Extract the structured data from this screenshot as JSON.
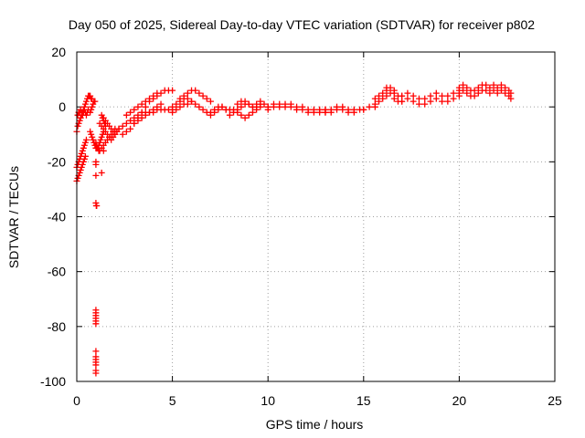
{
  "chart_data": {
    "type": "scatter",
    "title": "Day 050 of 2025, Sidereal Day-to-day VTEC variation (SDTVAR) for receiver p802",
    "xlabel": "GPS time / hours",
    "ylabel": "SDTVAR / TECUs",
    "xlim": [
      0,
      25
    ],
    "ylim": [
      -100,
      20
    ],
    "xticks": [
      0,
      5,
      10,
      15,
      20,
      25
    ],
    "yticks": [
      -100,
      -80,
      -60,
      -40,
      -20,
      0,
      20
    ],
    "xtick_labels": [
      "0",
      "5",
      "10",
      "15",
      "20",
      "25"
    ],
    "ytick_labels": [
      "-100",
      "-80",
      "-60",
      "-40",
      "-20",
      "0",
      "20"
    ],
    "grid": true,
    "marker": "+",
    "color": "#ff0000",
    "series": [
      {
        "name": "SDTVAR",
        "x": [
          0.0,
          0.05,
          0.1,
          0.15,
          0.2,
          0.25,
          0.3,
          0.35,
          0.4,
          0.45,
          0.5,
          0.55,
          0.6,
          0.65,
          0.7,
          0.75,
          0.8,
          0.05,
          0.1,
          0.15,
          0.2,
          0.25,
          0.3,
          0.35,
          0.4,
          0.45,
          0.5,
          0.55,
          0.6,
          0.0,
          0.05,
          0.1,
          0.15,
          0.2,
          0.25,
          0.3,
          0.35,
          0.4,
          0.45,
          0.5,
          0.0,
          0.05,
          0.1,
          0.15,
          0.2,
          0.25,
          0.3,
          0.35,
          0.4,
          0.45,
          0.7,
          0.75,
          0.8,
          0.85,
          0.9,
          0.95,
          0.7,
          0.75,
          0.8,
          0.85,
          0.9,
          0.95,
          1.0,
          1.05,
          1.1,
          1.15,
          1.2,
          1.25,
          1.3,
          1.35,
          1.4,
          1.3,
          1.35,
          1.4,
          1.45,
          1.5,
          1.0,
          1.05,
          1.1,
          1.15,
          1.2,
          1.3,
          1.4,
          1.5,
          1.6,
          1.7,
          1.8,
          1.9,
          2.0,
          1.2,
          1.3,
          1.4,
          1.5,
          1.6,
          1.7,
          1.8,
          1.9,
          2.0,
          2.1,
          1.4,
          1.5,
          1.6,
          1.7,
          1.8,
          1.9,
          2.0,
          2.1,
          2.2,
          1.0,
          1.0,
          1.0,
          1.02,
          1.04,
          1.0,
          1.0,
          1.0,
          1.0,
          1.0,
          1.0,
          1.0,
          1.0,
          1.0,
          1.0,
          1.0,
          1.0,
          1.0,
          1.0,
          2.0,
          2.2,
          2.4,
          2.6,
          2.8,
          3.0,
          3.2,
          3.4,
          3.6,
          3.8,
          4.0,
          4.2,
          4.4,
          4.6,
          4.8,
          5.0,
          2.4,
          2.6,
          2.8,
          3.0,
          3.2,
          3.4,
          3.6,
          3.8,
          4.0,
          4.2,
          4.4,
          4.6,
          4.8,
          5.0,
          2.6,
          2.8,
          3.0,
          3.2,
          3.4,
          3.6,
          3.8,
          4.0,
          4.2,
          3.0,
          3.2,
          3.4,
          3.6,
          3.8,
          4.0,
          4.2,
          4.4,
          5.0,
          5.2,
          5.4,
          5.6,
          5.8,
          6.0,
          5.0,
          5.2,
          5.4,
          5.6,
          5.8,
          6.0,
          6.2,
          6.4,
          6.6,
          6.8,
          7.0,
          7.2,
          7.4,
          7.6,
          7.8,
          8.0,
          5.4,
          5.6,
          5.8,
          6.0,
          6.2,
          6.4,
          6.6,
          6.8,
          7.0,
          7.0,
          7.2,
          7.4,
          7.6,
          7.8,
          8.0,
          8.2,
          8.4,
          8.6,
          8.8,
          9.0,
          9.2,
          9.4,
          9.6,
          9.8,
          10.0,
          8.2,
          8.4,
          8.6,
          8.8,
          9.0,
          9.2,
          9.4,
          9.6,
          8.4,
          8.6,
          8.8,
          9.0,
          9.2,
          9.4,
          9.6,
          10.0,
          10.3,
          10.6,
          10.9,
          11.2,
          11.5,
          11.8,
          12.1,
          12.4,
          12.7,
          13.0,
          10.0,
          10.3,
          10.6,
          10.9,
          11.2,
          11.5,
          11.8,
          12.1,
          12.4,
          12.7,
          13.0,
          13.0,
          13.3,
          13.6,
          13.9,
          14.2,
          14.5,
          14.8,
          15.0,
          13.0,
          13.3,
          13.6,
          13.9,
          14.2,
          14.5,
          15.0,
          15.3,
          15.6,
          15.6,
          15.8,
          16.0,
          16.2,
          16.4,
          16.6,
          16.8,
          17.0,
          15.6,
          15.8,
          16.0,
          16.2,
          16.4,
          16.6,
          16.8,
          17.0,
          17.0,
          17.3,
          17.6,
          17.9,
          18.2,
          18.5,
          18.8,
          19.1,
          19.4,
          19.7,
          20.0,
          17.0,
          17.3,
          17.6,
          17.9,
          18.2,
          18.5,
          18.8,
          19.1,
          19.4,
          19.7,
          20.0,
          20.0,
          20.2,
          20.4,
          20.6,
          20.8,
          21.0,
          21.2,
          21.4,
          21.6,
          21.8,
          22.0,
          22.2,
          22.4,
          22.6,
          22.7,
          20.0,
          20.2,
          20.4,
          20.6,
          20.8,
          21.0,
          21.2,
          21.4,
          21.6,
          21.8,
          22.0,
          22.2,
          22.4,
          22.6,
          22.7,
          16.2,
          16.6,
          1.3,
          1.4
        ],
        "y": [
          -9,
          -7,
          -6,
          -5,
          -4,
          -3,
          -2,
          -1,
          0,
          1,
          2,
          3,
          4,
          4,
          4,
          3,
          3,
          -3,
          -2,
          -2,
          -1,
          -2,
          -3,
          -2,
          -1,
          -2,
          -3,
          -2,
          -1,
          -22,
          -21,
          -20,
          -19,
          -18,
          -17,
          -16,
          -15,
          -14,
          -13,
          -12,
          -27,
          -26,
          -25,
          -24,
          -23,
          -22,
          -21,
          -20,
          -19,
          -18,
          -2,
          -1,
          0,
          1,
          2,
          2,
          -9,
          -10,
          -11,
          -12,
          -13,
          -14,
          -15,
          -15,
          -15,
          -14,
          -13,
          -12,
          -11,
          -10,
          -9,
          -3,
          -4,
          -5,
          -6,
          -7,
          -13,
          -14,
          -15,
          -16,
          -16,
          -15,
          -14,
          -13,
          -12,
          -11,
          -10,
          -9,
          -8,
          -6,
          -7,
          -8,
          -9,
          -10,
          -11,
          -12,
          -11,
          -10,
          -9,
          -4,
          -5,
          -6,
          -7,
          -8,
          -9,
          -10,
          -9,
          -8,
          -20,
          -21,
          -35,
          -36,
          -36,
          -74,
          -75,
          -76,
          -77,
          -78,
          -79,
          -89,
          -91,
          -92,
          -93,
          -94,
          -96,
          -97,
          -25,
          -9,
          -8,
          -7,
          -6,
          -5,
          -4,
          -3,
          -2,
          -2,
          -2,
          -2,
          -1,
          -1,
          -1,
          -1,
          -1,
          -10,
          -9,
          -8,
          -6,
          -4,
          -2,
          0,
          2,
          3,
          4,
          5,
          6,
          6,
          6,
          -3,
          -2,
          -1,
          0,
          1,
          2,
          3,
          4,
          5,
          -6,
          -5,
          -4,
          -3,
          -2,
          -1,
          0,
          1,
          -2,
          -1,
          0,
          1,
          1,
          2,
          0,
          1,
          2,
          3,
          3,
          2,
          1,
          0,
          -1,
          -2,
          -2,
          -1,
          0,
          0,
          -1,
          -1,
          3,
          4,
          5,
          6,
          6,
          5,
          4,
          3,
          2,
          -3,
          -2,
          -1,
          0,
          -1,
          -3,
          -2,
          -1,
          0,
          1,
          1,
          0,
          0,
          1,
          1,
          0,
          -1,
          -2,
          -3,
          -4,
          -3,
          -2,
          -1,
          0,
          1,
          2,
          2,
          1,
          0,
          1,
          2,
          0,
          1,
          1,
          1,
          1,
          0,
          0,
          -1,
          -1,
          -1,
          -1,
          -1,
          0,
          0,
          0,
          0,
          -1,
          -1,
          -2,
          -2,
          -2,
          -2,
          -2,
          -2,
          -1,
          -1,
          -2,
          -2,
          -1,
          -1,
          -1,
          -1,
          0,
          0,
          -1,
          -1,
          -1,
          0,
          0,
          3,
          4,
          5,
          6,
          7,
          5,
          4,
          4,
          1,
          2,
          3,
          4,
          5,
          3,
          2,
          2,
          4,
          5,
          4,
          3,
          3,
          4,
          5,
          4,
          4,
          5,
          6,
          2,
          3,
          2,
          1,
          1,
          2,
          3,
          2,
          2,
          3,
          4,
          7,
          8,
          7,
          6,
          6,
          7,
          8,
          8,
          7,
          8,
          7,
          8,
          7,
          6,
          5,
          5,
          6,
          5,
          4,
          4,
          5,
          6,
          6,
          5,
          6,
          5,
          6,
          5,
          4,
          3,
          7,
          6,
          -24,
          -16
        ]
      }
    ]
  }
}
